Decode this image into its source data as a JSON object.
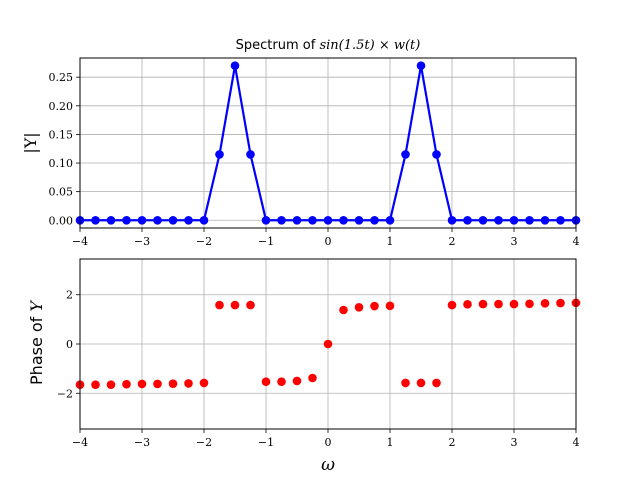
{
  "chart_data": [
    {
      "type": "line",
      "title_prefix": "Spectrum of ",
      "title_math": "sin(1.5t) × w(t)",
      "ylabel": "|Y|",
      "xlabel": "",
      "xlim": [
        -4,
        4
      ],
      "ylim": [
        -0.0135,
        0.2835
      ],
      "xticks": [
        -4,
        -3,
        -2,
        -1,
        0,
        1,
        2,
        3,
        4
      ],
      "xtick_labels": [
        "−4",
        "−3",
        "−2",
        "−1",
        "0",
        "1",
        "2",
        "3",
        "4"
      ],
      "yticks": [
        0.0,
        0.05,
        0.1,
        0.15,
        0.2,
        0.25
      ],
      "ytick_labels": [
        "0.00",
        "0.05",
        "0.10",
        "0.15",
        "0.20",
        "0.25"
      ],
      "grid": true,
      "color": "#0000ff",
      "x": [
        -4,
        -3.75,
        -3.5,
        -3.25,
        -3,
        -2.75,
        -2.5,
        -2.25,
        -2,
        -1.75,
        -1.5,
        -1.25,
        -1,
        -0.75,
        -0.5,
        -0.25,
        0,
        0.25,
        0.5,
        0.75,
        1,
        1.25,
        1.5,
        1.75,
        2,
        2.25,
        2.5,
        2.75,
        3,
        3.25,
        3.5,
        3.75,
        4
      ],
      "y": [
        0,
        0,
        0,
        0,
        0,
        0,
        0,
        0,
        0,
        0.115,
        0.27,
        0.115,
        0,
        0,
        0,
        0,
        0,
        0,
        0,
        0,
        0,
        0.115,
        0.27,
        0.115,
        0,
        0,
        0,
        0,
        0,
        0,
        0,
        0,
        0
      ]
    },
    {
      "type": "scatter",
      "ylabel_prefix": "Phase of ",
      "ylabel_math": "Y",
      "xlabel": "ω",
      "xlim": [
        -4,
        4
      ],
      "ylim": [
        -3.45,
        3.45
      ],
      "xticks": [
        -4,
        -3,
        -2,
        -1,
        0,
        1,
        2,
        3,
        4
      ],
      "xtick_labels": [
        "−4",
        "−3",
        "−2",
        "−1",
        "0",
        "1",
        "2",
        "3",
        "4"
      ],
      "yticks": [
        -2,
        0,
        2
      ],
      "ytick_labels": [
        "−2",
        "0",
        "2"
      ],
      "grid": true,
      "color": "#ff0000",
      "x": [
        -4,
        -3.75,
        -3.5,
        -3.25,
        -3,
        -2.75,
        -2.5,
        -2.25,
        -2,
        -1.75,
        -1.5,
        -1.25,
        -1,
        -0.75,
        -0.5,
        -0.25,
        0,
        0.25,
        0.5,
        0.75,
        1,
        1.25,
        1.5,
        1.75,
        2,
        2.25,
        2.5,
        2.75,
        3,
        3.25,
        3.5,
        3.75,
        4
      ],
      "y": [
        -1.65,
        -1.65,
        -1.65,
        -1.63,
        -1.62,
        -1.62,
        -1.61,
        -1.6,
        -1.58,
        1.58,
        1.58,
        1.58,
        -1.53,
        -1.53,
        -1.5,
        -1.38,
        0,
        1.38,
        1.49,
        1.54,
        1.55,
        -1.58,
        -1.58,
        -1.58,
        1.58,
        1.61,
        1.62,
        1.62,
        1.62,
        1.63,
        1.65,
        1.66,
        1.67
      ]
    }
  ]
}
